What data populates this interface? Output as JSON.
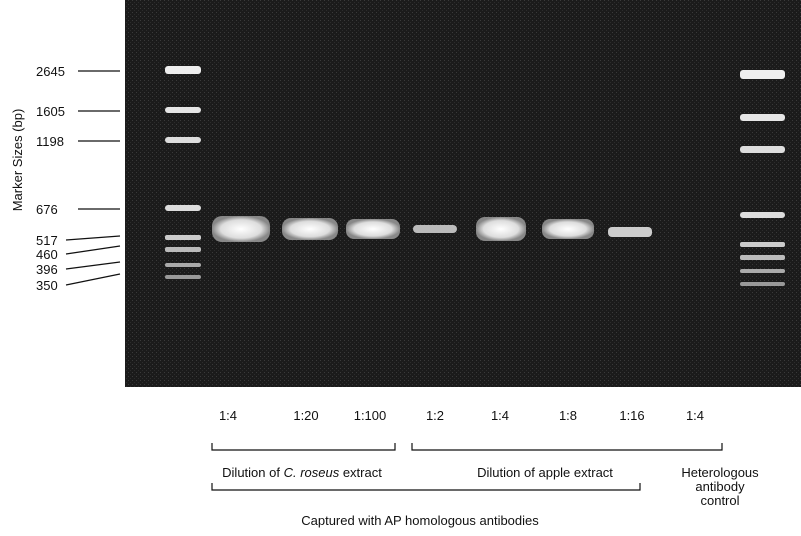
{
  "axis_label": "Marker Sizes (bp)",
  "markers": [
    "2645",
    "1605",
    "1198",
    "676",
    "517",
    "460",
    "396",
    "350"
  ],
  "lanes": [
    "1:4",
    "1:20",
    "1:100",
    "1:2",
    "1:4",
    "1:8",
    "1:16",
    "1:4"
  ],
  "groups": [
    {
      "parts": [
        "Dilution of ",
        "C. roseus",
        " extract"
      ]
    },
    {
      "parts": [
        "Dilution of apple extract"
      ]
    },
    {
      "lines": [
        "Heterologous",
        "antibody",
        "control"
      ]
    }
  ],
  "caption": "Captured with AP homologous antibodies"
}
